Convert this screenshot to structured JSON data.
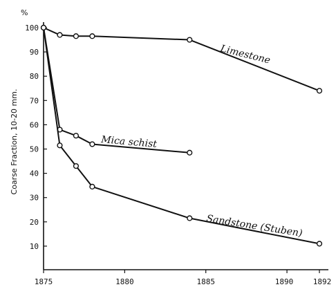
{
  "chart_data": {
    "type": "line",
    "title": "",
    "xlabel": "",
    "ylabel": "Coarse Fraction, 10-20 mm.",
    "y_unit": "%",
    "xlim": [
      1875,
      1892
    ],
    "ylim": [
      0,
      100
    ],
    "grid": false,
    "x_ticks": [
      {
        "value": 1875,
        "label": "1875"
      },
      {
        "value": 1880,
        "label": "1880"
      },
      {
        "value": 1885,
        "label": "1885"
      },
      {
        "value": 1890,
        "label": "1890"
      },
      {
        "value": 1892,
        "label": "1892"
      }
    ],
    "y_ticks": [
      10,
      20,
      30,
      40,
      50,
      60,
      70,
      80,
      90,
      100
    ],
    "series": [
      {
        "name": "Limestone",
        "points": [
          [
            1875,
            100
          ],
          [
            1876,
            97
          ],
          [
            1877,
            96.5
          ],
          [
            1878,
            96.5
          ],
          [
            1884,
            95
          ],
          [
            1892,
            74
          ]
        ]
      },
      {
        "name": "Mica schist",
        "points": [
          [
            1875,
            100
          ],
          [
            1876,
            58
          ],
          [
            1877,
            55.5
          ],
          [
            1878,
            52
          ],
          [
            1884,
            48.5
          ]
        ]
      },
      {
        "name": "Sandstone (Stuben)",
        "points": [
          [
            1875,
            100
          ],
          [
            1876,
            51.5
          ],
          [
            1877,
            43
          ],
          [
            1878,
            34.5
          ],
          [
            1884,
            21.5
          ],
          [
            1892,
            11
          ]
        ]
      }
    ]
  }
}
